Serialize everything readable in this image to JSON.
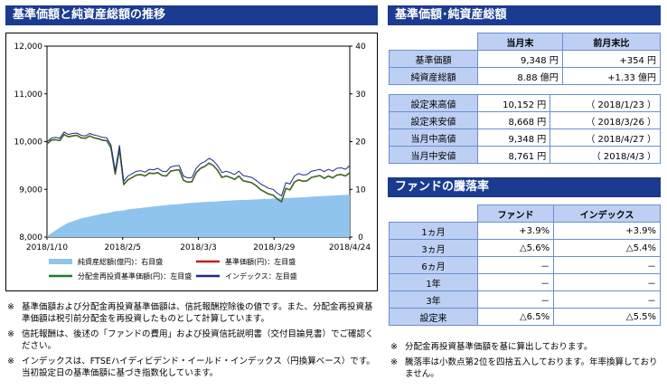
{
  "headers": {
    "chart": "基準価額と純資産総額の推移",
    "nav_table": "基準価額･純資産総額",
    "performance": "ファンドの騰落率"
  },
  "chart_data": {
    "type": "line",
    "x_ticks": [
      "2018/1/10",
      "2018/2/5",
      "2018/3/3",
      "2018/3/29",
      "2018/4/24"
    ],
    "y_left": {
      "ticks": [
        "8,000",
        "9,000",
        "10,000",
        "11,000",
        "12,000"
      ],
      "ylim": [
        8000,
        12000
      ]
    },
    "y_right": {
      "ticks": [
        "0",
        "10",
        "20",
        "30",
        "40"
      ],
      "ylim": [
        0,
        40
      ]
    },
    "series": [
      {
        "name": "純資産総額(億円)：右目盛",
        "type": "area",
        "axis": "right",
        "color": "#8fc4ec",
        "values": [
          0.2,
          0.8,
          1.4,
          2.0,
          2.5,
          3.0,
          3.3,
          3.6,
          3.9,
          4.1,
          4.3,
          4.5,
          4.7,
          4.9,
          5.0,
          5.2,
          5.4,
          5.5,
          5.6,
          5.8,
          5.9,
          6.0,
          6.1,
          6.2,
          6.3,
          6.4,
          6.5,
          6.6,
          6.7,
          6.8,
          6.85,
          6.9,
          7.0,
          7.1,
          7.15,
          7.2,
          7.3,
          7.35,
          7.4,
          7.45,
          7.5,
          7.55,
          7.6,
          7.65,
          7.7,
          7.75,
          7.8,
          7.8,
          7.85,
          7.9,
          7.95,
          8.0,
          8.0,
          8.05,
          8.1,
          8.15,
          8.2,
          8.2,
          8.25,
          8.3,
          8.35,
          8.4,
          8.45,
          8.5,
          8.55,
          8.6,
          8.65,
          8.7,
          8.75,
          8.8,
          8.85,
          8.88
        ]
      },
      {
        "name": "基準価額(円)：左目盛",
        "type": "line",
        "axis": "left",
        "color": "#c0201b",
        "values": [
          9950,
          10030,
          10040,
          10020,
          10150,
          10100,
          10120,
          10130,
          10080,
          10070,
          10120,
          10080,
          10060,
          10030,
          10020,
          9870,
          9320,
          9850,
          9100,
          9200,
          9250,
          9300,
          9310,
          9280,
          9340,
          9330,
          9350,
          9290,
          9280,
          9380,
          9400,
          9410,
          9190,
          9150,
          9160,
          9350,
          9440,
          9480,
          9550,
          9500,
          9400,
          9250,
          9280,
          9250,
          9210,
          9280,
          9180,
          9160,
          9140,
          9080,
          9000,
          8950,
          8900,
          8880,
          8800,
          8740,
          9020,
          8990,
          9150,
          9200,
          9170,
          9180,
          9250,
          9270,
          9290,
          9230,
          9280,
          9240,
          9300,
          9310,
          9280,
          9348
        ]
      },
      {
        "name": "分配金再投資基準価額(円)：左目盛",
        "type": "line",
        "axis": "left",
        "color": "#1a7d2a",
        "values": [
          9950,
          10030,
          10040,
          10020,
          10150,
          10100,
          10120,
          10130,
          10080,
          10070,
          10120,
          10080,
          10060,
          10030,
          10020,
          9870,
          9320,
          9850,
          9100,
          9200,
          9250,
          9300,
          9310,
          9280,
          9340,
          9330,
          9350,
          9290,
          9280,
          9380,
          9400,
          9410,
          9190,
          9150,
          9160,
          9350,
          9440,
          9480,
          9550,
          9500,
          9400,
          9250,
          9280,
          9250,
          9210,
          9280,
          9180,
          9160,
          9140,
          9080,
          9000,
          8950,
          8900,
          8880,
          8800,
          8740,
          9020,
          8990,
          9150,
          9200,
          9170,
          9180,
          9250,
          9270,
          9290,
          9230,
          9280,
          9240,
          9300,
          9310,
          9280,
          9348
        ]
      },
      {
        "name": "インデックス：左目盛",
        "type": "line",
        "axis": "left",
        "color": "#1c2a8a",
        "values": [
          10000,
          10070,
          10090,
          10070,
          10200,
          10150,
          10170,
          10180,
          10130,
          10120,
          10170,
          10140,
          10120,
          10090,
          10080,
          9930,
          9390,
          9920,
          9170,
          9280,
          9330,
          9380,
          9390,
          9360,
          9420,
          9410,
          9440,
          9380,
          9370,
          9470,
          9490,
          9500,
          9280,
          9240,
          9250,
          9440,
          9540,
          9580,
          9650,
          9600,
          9500,
          9350,
          9380,
          9350,
          9310,
          9380,
          9290,
          9270,
          9250,
          9190,
          9120,
          9070,
          9020,
          9000,
          8920,
          8860,
          9140,
          9110,
          9280,
          9330,
          9300,
          9310,
          9380,
          9400,
          9420,
          9370,
          9420,
          9380,
          9440,
          9450,
          9420,
          9500
        ]
      }
    ]
  },
  "nav_table": {
    "col_current": "当月末",
    "col_change": "前月末比",
    "rows": [
      {
        "label": "基準価額",
        "value": "9,348 円",
        "change": "+354 円"
      },
      {
        "label": "純資産総額",
        "value": "8.88 億円",
        "change": "+1.33 億円"
      }
    ],
    "records": [
      {
        "label": "設定来高値",
        "value": "10,152 円",
        "date": "（ 2018/1/23 ）"
      },
      {
        "label": "設定来安値",
        "value": "8,668 円",
        "date": "（ 2018/3/26 ）"
      },
      {
        "label": "当月中高値",
        "value": "9,348 円",
        "date": "（ 2018/4/27 ）"
      },
      {
        "label": "当月中安値",
        "value": "8,761 円",
        "date": "（ 2018/4/3 ）"
      }
    ]
  },
  "performance": {
    "col_fund": "ファンド",
    "col_index": "インデックス",
    "rows": [
      {
        "label": "1ヵ月",
        "fund": "+3.9%",
        "index": "+3.9%"
      },
      {
        "label": "3ヵ月",
        "fund": "△5.6%",
        "index": "△5.4%"
      },
      {
        "label": "6ヵ月",
        "fund": "－",
        "index": "－"
      },
      {
        "label": "1年",
        "fund": "－",
        "index": "－"
      },
      {
        "label": "3年",
        "fund": "－",
        "index": "－"
      },
      {
        "label": "設定来",
        "fund": "△6.5%",
        "index": "△5.5%"
      }
    ]
  },
  "notes_left": [
    {
      "mark": "※",
      "text": "基準価額および分配金再投資基準価額は、信託報酬控除後の値です。また、分配金再投資基準価額は税引前分配金を再投資したものとして計算しています。"
    },
    {
      "mark": "※",
      "text": "信託報酬は、後述の「ファンドの費用」および投資信託説明書（交付目論見書）でご確認ください。"
    },
    {
      "mark": "※",
      "text": "インデックスは、FTSEハイディビデンド・イールド・インデックス（円換算ベース）です。当初設定日の基準価額に基づき指数化しています。"
    }
  ],
  "notes_right": [
    {
      "mark": "※",
      "text": "分配金再投資基準価額を基に算出しております。"
    },
    {
      "mark": "※",
      "text": "騰落率は小数点第2位を四捨五入しております。年率換算しておりません。"
    }
  ]
}
